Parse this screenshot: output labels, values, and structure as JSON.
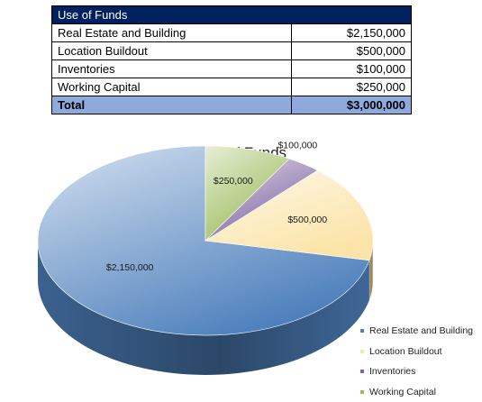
{
  "table": {
    "header": "Use of Funds",
    "rows": [
      {
        "label": "Real Estate and Building",
        "amount": "$2,150,000"
      },
      {
        "label": "Location Buildout",
        "amount": "$500,000"
      },
      {
        "label": "Inventories",
        "amount": "$100,000"
      },
      {
        "label": "Working Capital",
        "amount": "$250,000"
      }
    ],
    "total": {
      "label": "Total",
      "amount": "$3,000,000"
    }
  },
  "chart_data": {
    "type": "pie",
    "title": "Use of Funds",
    "style": "3d",
    "legend_position": "right",
    "categories": [
      "Real Estate and Building",
      "Location Buildout",
      "Inventories",
      "Working Capital"
    ],
    "values": [
      2150000,
      500000,
      100000,
      250000
    ],
    "data_labels": [
      "$2,150,000",
      "$500,000",
      "$100,000",
      "$250,000"
    ],
    "colors": [
      "#4f81bd",
      "#fbe4a8",
      "#8064a2",
      "#9bbb59"
    ]
  }
}
